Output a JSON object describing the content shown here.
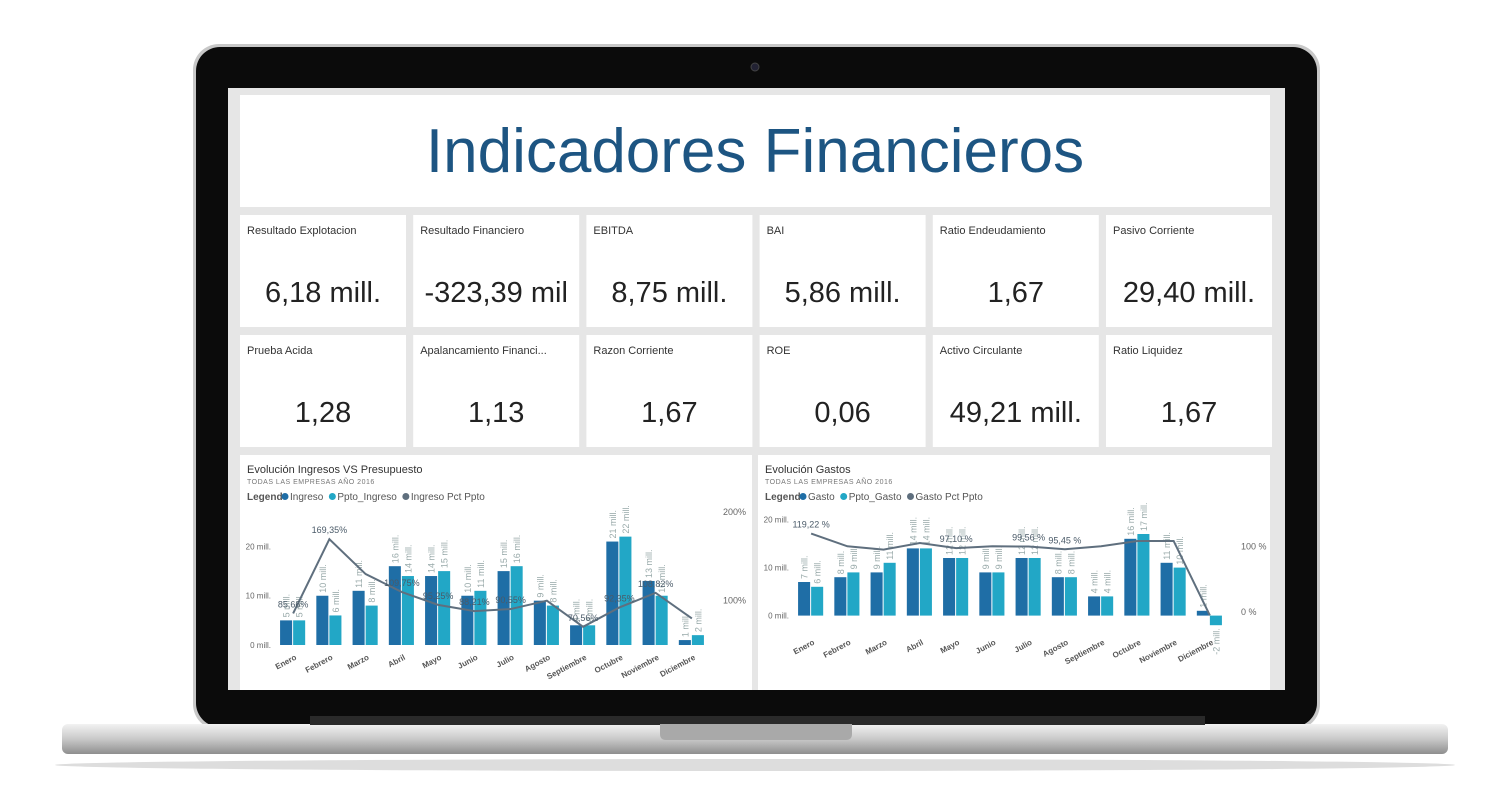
{
  "dashboard": {
    "title": "Indicadores Financieros",
    "kpis": [
      {
        "label": "Resultado Explotacion",
        "value": "6,18 mill."
      },
      {
        "label": "Resultado Financiero",
        "value": "-323,39 mil"
      },
      {
        "label": "EBITDA",
        "value": "8,75 mill."
      },
      {
        "label": "BAI",
        "value": "5,86 mill."
      },
      {
        "label": "Ratio Endeudamiento",
        "value": "1,67"
      },
      {
        "label": "Pasivo Corriente",
        "value": "29,40 mill."
      },
      {
        "label": "Prueba Acida",
        "value": "1,28"
      },
      {
        "label": "Apalancamiento Financi...",
        "value": "1,13"
      },
      {
        "label": "Razon Corriente",
        "value": "1,67"
      },
      {
        "label": "ROE",
        "value": "0,06"
      },
      {
        "label": "Activo Circulante",
        "value": "49,21 mill."
      },
      {
        "label": "Ratio Liquidez",
        "value": "1,67"
      }
    ]
  },
  "chart_data": [
    {
      "type": "bar",
      "title": "Evolución Ingresos VS Presupuesto",
      "subtitle": "TODAS LAS EMPRESAS AÑO 2016",
      "legend_title": "Legend",
      "categories": [
        "Enero",
        "Febrero",
        "Marzo",
        "Abril",
        "Mayo",
        "Junio",
        "Julio",
        "Agosto",
        "Septiembre",
        "Octubre",
        "Noviembre",
        "Diciembre"
      ],
      "series": [
        {
          "name": "Ingreso",
          "color": "#1f6ea6",
          "values": [
            5,
            10,
            11,
            16,
            14,
            10,
            15,
            9,
            4,
            21,
            13,
            1
          ],
          "value_labels": [
            "5 mill.",
            "10 mill.",
            "11 mill.",
            "16 mill.",
            "14 mill.",
            "10 mill.",
            "15 mill.",
            "9 mill.",
            "4 mill.",
            "21 mill.",
            "13 mill.",
            "1 mill."
          ]
        },
        {
          "name": "Ppto_Ingreso",
          "color": "#22a7c6",
          "values": [
            5,
            6,
            8,
            14,
            15,
            11,
            16,
            8,
            4,
            22,
            10,
            2
          ],
          "value_labels": [
            "5 mill.",
            "6 mill.",
            "8 mill.",
            "14 mill.",
            "15 mill.",
            "11 mill.",
            "16 mill.",
            "8 mill.",
            "4 mill.",
            "22 mill.",
            "10 mill.",
            "2 mill."
          ]
        },
        {
          "name": "Ingreso Pct Ppto",
          "type": "line",
          "axis": "y2",
          "color": "#5f6f7e",
          "values": [
            85.66,
            169.35,
            130,
            109.75,
            95.25,
            88.21,
            90.55,
            100,
            70.56,
            92.35,
            108.82,
            80
          ],
          "value_labels": [
            "85,66%",
            "169,35%",
            null,
            "109,75%",
            "95,25%",
            "88,21%",
            "90,55%",
            null,
            "70,56%",
            "92,35%",
            "108,82%",
            null
          ]
        }
      ],
      "ylim": [
        0,
        27
      ],
      "yticks": [
        {
          "value": 0,
          "label": "0 mill."
        },
        {
          "value": 10,
          "label": "10 mill."
        },
        {
          "value": 20,
          "label": "20 mill."
        }
      ],
      "y2lim": [
        50,
        200
      ],
      "y2ticks": [
        {
          "value": 100,
          "label": "100%"
        },
        {
          "value": 200,
          "label": "200%"
        }
      ]
    },
    {
      "type": "bar",
      "title": "Evolución Gastos",
      "subtitle": "TODAS LAS EMPRESAS AÑO 2016",
      "legend_title": "Legend",
      "categories": [
        "Enero",
        "Febrero",
        "Marzo",
        "Abril",
        "Mayo",
        "Junio",
        "Julio",
        "Agosto",
        "Septiembre",
        "Octubre",
        "Noviembre",
        "Diciembre"
      ],
      "series": [
        {
          "name": "Gasto",
          "color": "#1f6ea6",
          "values": [
            7,
            8,
            9,
            14,
            12,
            9,
            12,
            8,
            4,
            16,
            11,
            1
          ],
          "value_labels": [
            "7 mill.",
            "8 mill.",
            "9 mill.",
            "14 mill.",
            "12 mill.",
            "9 mill.",
            "12 mill.",
            "8 mill.",
            "4 mill.",
            "16 mill.",
            "11 mill.",
            "1 mill."
          ]
        },
        {
          "name": "Ppto_Gasto",
          "color": "#22a7c6",
          "values": [
            6,
            9,
            11,
            14,
            12,
            9,
            12,
            8,
            4,
            17,
            10,
            -2
          ],
          "value_labels": [
            "6 mill.",
            "9 mill.",
            "11 mill.",
            "14 mill.",
            "12 mill.",
            "9 mill.",
            "12 mill.",
            "8 mill.",
            "4 mill.",
            "17 mill.",
            "10 mill.",
            "-2 mill."
          ]
        },
        {
          "name": "Gasto Pct Ppto",
          "type": "line",
          "axis": "y2",
          "color": "#5f6f7e",
          "values": [
            119.22,
            100,
            95,
            105,
            97.1,
            100,
            99.56,
            95.45,
            100,
            108,
            108,
            -5
          ],
          "value_labels": [
            "119,22 %",
            null,
            null,
            null,
            "97,10 %",
            null,
            "99,56 %",
            "95,45 %",
            null,
            null,
            null,
            null
          ]
        }
      ],
      "ylim": [
        -3,
        22
      ],
      "yticks": [
        {
          "value": 0,
          "label": "0 mill."
        },
        {
          "value": 10,
          "label": "10 mill."
        },
        {
          "value": 20,
          "label": "20 mill."
        }
      ],
      "y2lim": [
        -27,
        155
      ],
      "y2ticks": [
        {
          "value": 0,
          "label": "0 %"
        },
        {
          "value": 100,
          "label": "100 %"
        }
      ]
    }
  ]
}
